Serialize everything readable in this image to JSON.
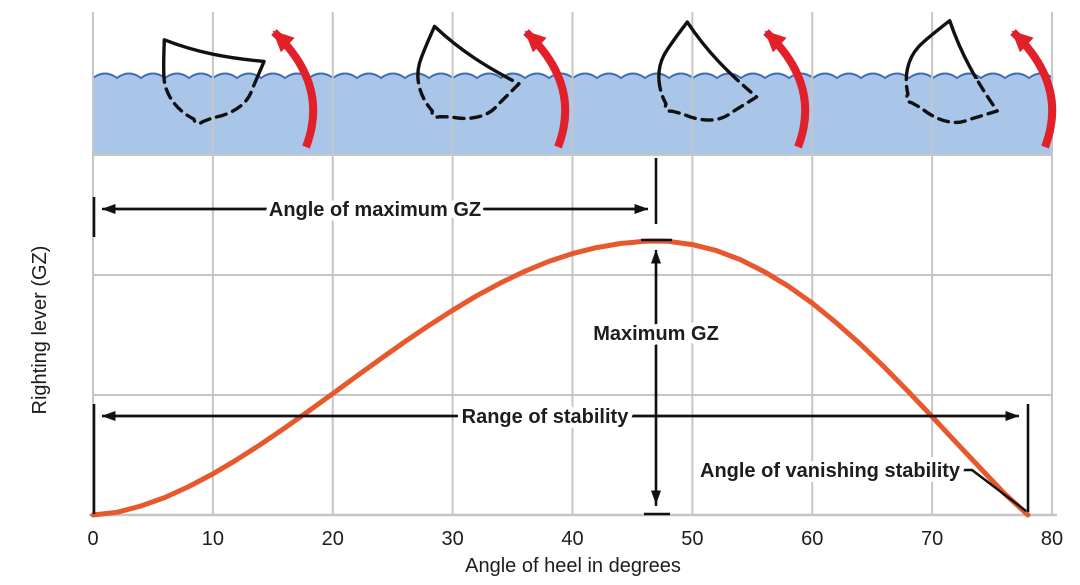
{
  "figure": {
    "y_axis_label": "Righting lever (GZ)",
    "x_axis_label": "Angle of heel in degrees",
    "annotations": {
      "angle_of_max_gz": {
        "label": "Angle of maximum GZ",
        "angle_deg": 47
      },
      "maximum_gz": {
        "label": "Maximum GZ"
      },
      "range_of_stability": {
        "label": "Range of stability",
        "from_deg": 0,
        "to_deg": 78
      },
      "angle_of_vanishing_stability": {
        "label": "Angle of vanishing stability",
        "angle_deg": 78
      }
    },
    "boats": {
      "heel_angles_deg": [
        10,
        32,
        45,
        60
      ],
      "note": "ship cross-sections heeling progressively, solid above waterline, dashed below, red counter-rotation (righting) arrows"
    },
    "colors": {
      "curve": "#e7582c",
      "water_fill": "#a9c5e8",
      "wave_stroke": "#3d6cb4",
      "arrow_red": "#e2202a",
      "grid": "#c5c6c8",
      "ink": "#1d1d1f"
    }
  },
  "chart_data": {
    "type": "line",
    "title": "",
    "xlabel": "Angle of heel in degrees",
    "ylabel": "Righting lever (GZ)",
    "x_ticks": [
      0,
      10,
      20,
      30,
      40,
      50,
      60,
      70,
      80
    ],
    "xlim": [
      0,
      80
    ],
    "ylim": [
      0,
      1
    ],
    "grid": true,
    "legend": "none",
    "y_unit": "normalized righting lever (1 = maximum GZ, y-axis unlabeled in figure)",
    "peak": {
      "x": 47,
      "y": 1.0
    },
    "zero_crossing_x": 78,
    "x": [
      0,
      2,
      4,
      6,
      8,
      10,
      12,
      14,
      16,
      18,
      20,
      22,
      24,
      26,
      28,
      30,
      32,
      34,
      36,
      38,
      40,
      42,
      44,
      46,
      47,
      48,
      50,
      52,
      54,
      56,
      58,
      60,
      62,
      64,
      66,
      68,
      70,
      72,
      74,
      76,
      78
    ],
    "y": [
      0,
      0.01,
      0.033,
      0.064,
      0.104,
      0.15,
      0.202,
      0.258,
      0.318,
      0.38,
      0.443,
      0.507,
      0.57,
      0.632,
      0.691,
      0.747,
      0.8,
      0.847,
      0.889,
      0.925,
      0.954,
      0.976,
      0.991,
      0.999,
      1.0,
      0.999,
      0.987,
      0.965,
      0.932,
      0.888,
      0.835,
      0.773,
      0.702,
      0.624,
      0.54,
      0.451,
      0.359,
      0.265,
      0.172,
      0.08,
      0
    ]
  }
}
